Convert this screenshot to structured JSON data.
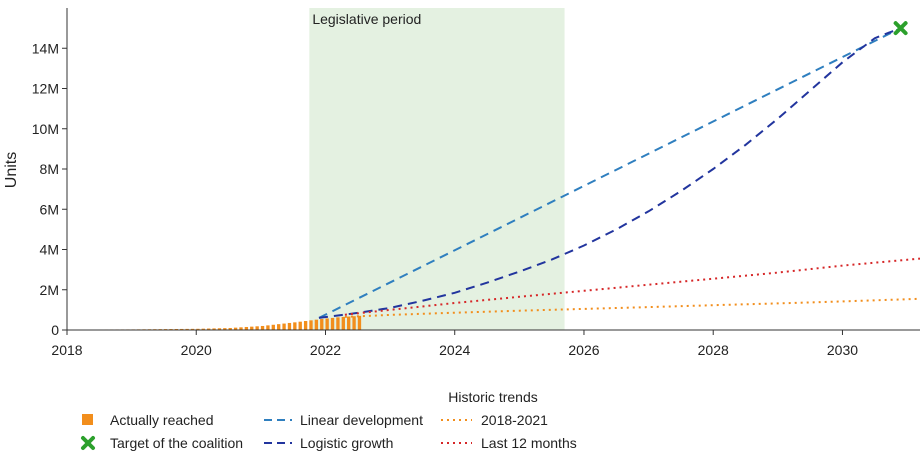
{
  "chart_data": {
    "type": "line",
    "ylabel": "Units",
    "xlabel": "",
    "x_range": [
      2018,
      2031.2
    ],
    "y_range": [
      0,
      16000000
    ],
    "x_ticks": [
      2018,
      2020,
      2022,
      2024,
      2026,
      2028,
      2030
    ],
    "x_tick_labels": [
      "2018",
      "2020",
      "2022",
      "2024",
      "2026",
      "2028",
      "2030"
    ],
    "y_ticks": [
      0,
      2000000,
      4000000,
      6000000,
      8000000,
      10000000,
      12000000,
      14000000
    ],
    "y_tick_labels": [
      "0",
      "2M",
      "4M",
      "6M",
      "8M",
      "10M",
      "12M",
      "14M"
    ],
    "shaded_region": {
      "label": "Legislative period",
      "x_start": 2021.75,
      "x_end": 2025.7,
      "color": "#e4f1e1"
    },
    "actually_reached": {
      "name": "Actually reached",
      "color": "#f28e1c",
      "x_start": 2018.0,
      "x_end": 2022.58,
      "values_at": [
        [
          2018.0,
          20000
        ],
        [
          2019.0,
          30000
        ],
        [
          2020.0,
          60000
        ],
        [
          2020.5,
          100000
        ],
        [
          2021.0,
          200000
        ],
        [
          2021.5,
          380000
        ],
        [
          2021.9,
          540000
        ],
        [
          2022.2,
          640000
        ],
        [
          2022.58,
          720000
        ]
      ]
    },
    "target": {
      "name": "Target of the coalition",
      "x": 2030.9,
      "y": 15000000,
      "color": "#2ca02c"
    },
    "legend_title": "Historic trends",
    "series": [
      {
        "name": "Linear development",
        "color": "#2f7fbf",
        "style": "dashed",
        "points": [
          [
            2021.9,
            600000
          ],
          [
            2030.9,
            15000000
          ]
        ]
      },
      {
        "name": "Logistic growth",
        "color": "#22359e",
        "style": "dashed",
        "points": [
          [
            2021.9,
            600000
          ],
          [
            2022.5,
            850000
          ],
          [
            2023.0,
            1100000
          ],
          [
            2023.5,
            1450000
          ],
          [
            2024.0,
            1850000
          ],
          [
            2024.5,
            2350000
          ],
          [
            2025.0,
            2900000
          ],
          [
            2025.5,
            3500000
          ],
          [
            2026.0,
            4200000
          ],
          [
            2026.5,
            5000000
          ],
          [
            2027.0,
            5900000
          ],
          [
            2027.5,
            6900000
          ],
          [
            2028.0,
            8000000
          ],
          [
            2028.5,
            9200000
          ],
          [
            2029.0,
            10500000
          ],
          [
            2029.5,
            11900000
          ],
          [
            2030.0,
            13300000
          ],
          [
            2030.5,
            14500000
          ],
          [
            2030.9,
            15000000
          ]
        ]
      },
      {
        "name": "2018-2021",
        "color": "#f28e1c",
        "style": "dotted",
        "points": [
          [
            2022.3,
            650000
          ],
          [
            2023.0,
            750000
          ],
          [
            2024.0,
            860000
          ],
          [
            2025.0,
            960000
          ],
          [
            2026.0,
            1050000
          ],
          [
            2027.0,
            1140000
          ],
          [
            2028.0,
            1230000
          ],
          [
            2029.0,
            1320000
          ],
          [
            2030.0,
            1420000
          ],
          [
            2031.2,
            1550000
          ]
        ]
      },
      {
        "name": "Last 12 months",
        "color": "#d62728",
        "style": "dotted",
        "points": [
          [
            2022.3,
            760000
          ],
          [
            2023.0,
            1000000
          ],
          [
            2024.0,
            1340000
          ],
          [
            2025.0,
            1650000
          ],
          [
            2026.0,
            1950000
          ],
          [
            2027.0,
            2250000
          ],
          [
            2028.0,
            2550000
          ],
          [
            2029.0,
            2850000
          ],
          [
            2030.0,
            3200000
          ],
          [
            2031.2,
            3550000
          ]
        ]
      }
    ],
    "legend_left": [
      "Actually reached",
      "Target of the coalition"
    ],
    "legend_middle": [
      "Linear development",
      "Logistic growth"
    ],
    "legend_right": [
      "2018-2021",
      "Last 12 months"
    ],
    "grid": false,
    "legend_position": "bottom"
  }
}
